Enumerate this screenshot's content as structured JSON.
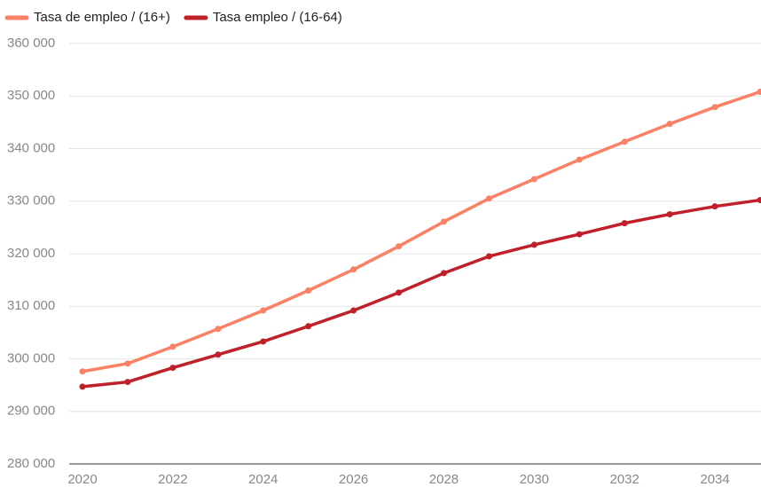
{
  "chart_data": {
    "type": "line",
    "x": [
      2020,
      2021,
      2022,
      2023,
      2024,
      2025,
      2026,
      2027,
      2028,
      2029,
      2030,
      2031,
      2032,
      2033,
      2034,
      2035
    ],
    "series": [
      {
        "name": "Tasa de empleo / (16+)",
        "color": "#fa8066",
        "values": [
          297600,
          299100,
          302300,
          305700,
          309200,
          313000,
          317000,
          321400,
          326100,
          330500,
          334200,
          337900,
          341300,
          344700,
          347900,
          350800
        ]
      },
      {
        "name": "Tasa empleo / (16-64)",
        "color": "#c0202a",
        "values": [
          294700,
          295600,
          298300,
          300800,
          303300,
          306200,
          309200,
          312600,
          316300,
          319500,
          321700,
          323700,
          325800,
          327500,
          329000,
          330200
        ]
      }
    ],
    "xlim": [
      2020,
      2035
    ],
    "xticks": [
      2020,
      2022,
      2024,
      2026,
      2028,
      2030,
      2032,
      2034
    ],
    "ylim": [
      280000,
      360000
    ],
    "yticks": [
      {
        "value": 280000,
        "label": "280 000"
      },
      {
        "value": 290000,
        "label": "290 000"
      },
      {
        "value": 300000,
        "label": "300 000"
      },
      {
        "value": 310000,
        "label": "310 000"
      },
      {
        "value": 320000,
        "label": "320 000"
      },
      {
        "value": 330000,
        "label": "330 000"
      },
      {
        "value": 340000,
        "label": "340 000"
      },
      {
        "value": 350000,
        "label": "350 000"
      },
      {
        "value": 360000,
        "label": "360 000"
      }
    ],
    "grid": true,
    "legend": "top-left"
  }
}
